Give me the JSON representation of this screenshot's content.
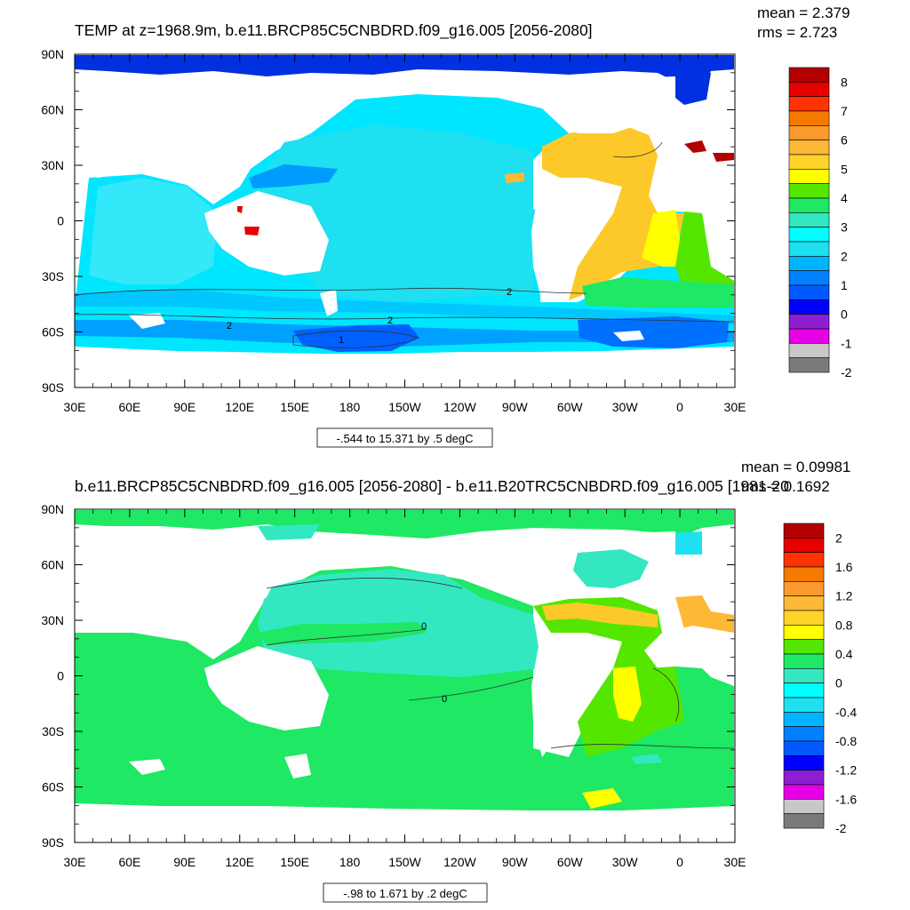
{
  "chart_data": [
    {
      "type": "heatmap",
      "title": "TEMP at z=1968.9m, b.e11.BRCP85C5CNBDRD.f09_g16.005 [2056-2080]",
      "stats": {
        "mean": "mean = 2.379",
        "rms": "rms = 2.723"
      },
      "x_ticks": [
        "30E",
        "60E",
        "90E",
        "120E",
        "150E",
        "180",
        "150W",
        "120W",
        "90W",
        "60W",
        "30W",
        "0",
        "30E"
      ],
      "y_ticks": [
        "90N",
        "60N",
        "30N",
        "0",
        "30S",
        "60S",
        "90S"
      ],
      "colorbar": {
        "labels": [
          "8",
          "7",
          "6",
          "5",
          "4",
          "3",
          "2",
          "1",
          "0",
          "-1",
          "-2"
        ],
        "colors": [
          "#b30000",
          "#e60000",
          "#ff3300",
          "#f47b00",
          "#fb9a2c",
          "#fdb936",
          "#ffd42a",
          "#ffff00",
          "#55e600",
          "#1ee864",
          "#33e8c0",
          "#00ffff",
          "#1ee0f0",
          "#00b4ff",
          "#0080ff",
          "#005aff",
          "#0000ff",
          "#8c1fd2",
          "#e600e6",
          "#c8c8c8",
          "#7a7a7a"
        ]
      },
      "contour_labels": [
        "2",
        "2",
        "2",
        "1"
      ],
      "range_note": "-.544 to 15.371 by .5 degC"
    },
    {
      "type": "heatmap",
      "title": "b.e11.BRCP85C5CNBDRD.f09_g16.005 [2056-2080] - b.e11.B20TRC5CNBDRD.f09_g16.005 [1981-20",
      "stats": {
        "mean": "mean = 0.09981",
        "rms": "rms = 0.1692"
      },
      "x_ticks": [
        "30E",
        "60E",
        "90E",
        "120E",
        "150E",
        "180",
        "150W",
        "120W",
        "90W",
        "60W",
        "30W",
        "0",
        "30E"
      ],
      "y_ticks": [
        "90N",
        "60N",
        "30N",
        "0",
        "30S",
        "60S",
        "90S"
      ],
      "colorbar": {
        "labels": [
          "2",
          "1.6",
          "1.2",
          "0.8",
          "0.4",
          "0",
          "-0.4",
          "-0.8",
          "-1.2",
          "-1.6",
          "-2"
        ],
        "colors": [
          "#b30000",
          "#e60000",
          "#ff3300",
          "#f47b00",
          "#fb9a2c",
          "#fdb936",
          "#ffd42a",
          "#ffff00",
          "#55e600",
          "#1ee864",
          "#33e8c0",
          "#00ffff",
          "#1ee0f0",
          "#00b4ff",
          "#0080ff",
          "#005aff",
          "#0000ff",
          "#8c1fd2",
          "#e600e6",
          "#c8c8c8",
          "#7a7a7a"
        ]
      },
      "contour_labels": [
        "0",
        "0"
      ],
      "range_note": "-.98 to 1.671 by .2 degC"
    }
  ]
}
